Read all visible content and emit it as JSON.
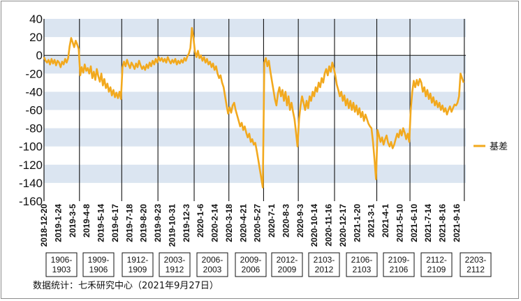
{
  "chart_data": {
    "type": "line",
    "ylim": [
      -160,
      40
    ],
    "yticks": [
      40,
      20,
      0,
      -20,
      -40,
      -60,
      -80,
      -100,
      -120,
      -140,
      -160
    ],
    "grid": "alternating horizontal bands",
    "legend_position": "right",
    "line_color": "#f2a91e",
    "band_color": "#dbe5f1",
    "series": [
      {
        "name": "基差",
        "points": [
          [
            0,
            -2
          ],
          [
            2,
            -6
          ],
          [
            4,
            -8
          ],
          [
            6,
            -5
          ],
          [
            8,
            -10
          ],
          [
            10,
            -4
          ],
          [
            12,
            -9
          ],
          [
            14,
            -5
          ],
          [
            16,
            -11
          ],
          [
            18,
            -6
          ],
          [
            20,
            -8
          ],
          [
            22,
            -13
          ],
          [
            24,
            -7
          ],
          [
            26,
            -10
          ],
          [
            28,
            -4
          ],
          [
            30,
            -8
          ],
          [
            32,
            -3
          ],
          [
            34,
            10
          ],
          [
            36,
            19
          ],
          [
            38,
            14
          ],
          [
            40,
            9
          ],
          [
            42,
            16
          ],
          [
            44,
            12
          ],
          [
            46,
            7
          ],
          [
            48,
            -22
          ],
          [
            50,
            -13
          ],
          [
            52,
            -19
          ],
          [
            54,
            -10
          ],
          [
            56,
            -17
          ],
          [
            58,
            -14
          ],
          [
            60,
            -20
          ],
          [
            62,
            -12
          ],
          [
            64,
            -25
          ],
          [
            66,
            -18
          ],
          [
            68,
            -27
          ],
          [
            70,
            -15
          ],
          [
            72,
            -23
          ],
          [
            74,
            -29
          ],
          [
            76,
            -20
          ],
          [
            78,
            -33
          ],
          [
            80,
            -26
          ],
          [
            82,
            -36
          ],
          [
            84,
            -31
          ],
          [
            86,
            -40
          ],
          [
            88,
            -35
          ],
          [
            90,
            -44
          ],
          [
            92,
            -38
          ],
          [
            94,
            -46
          ],
          [
            96,
            -41
          ],
          [
            98,
            -47
          ],
          [
            100,
            -40
          ],
          [
            102,
            -48
          ],
          [
            104,
            -13
          ],
          [
            106,
            -7
          ],
          [
            108,
            -12
          ],
          [
            110,
            -5
          ],
          [
            112,
            -10
          ],
          [
            114,
            -14
          ],
          [
            116,
            -8
          ],
          [
            118,
            -11
          ],
          [
            120,
            -15
          ],
          [
            122,
            -9
          ],
          [
            124,
            -13
          ],
          [
            126,
            -6
          ],
          [
            128,
            -11
          ],
          [
            130,
            -15
          ],
          [
            132,
            -12
          ],
          [
            134,
            -16
          ],
          [
            136,
            -10
          ],
          [
            138,
            -14
          ],
          [
            140,
            -8
          ],
          [
            142,
            -12
          ],
          [
            144,
            -6
          ],
          [
            146,
            -10
          ],
          [
            148,
            -4
          ],
          [
            150,
            -8
          ],
          [
            152,
            -2
          ],
          [
            154,
            -6
          ],
          [
            156,
            -3
          ],
          [
            158,
            -7
          ],
          [
            160,
            -4
          ],
          [
            162,
            -8
          ],
          [
            164,
            -2
          ],
          [
            166,
            -6
          ],
          [
            168,
            -9
          ],
          [
            170,
            -5
          ],
          [
            172,
            -8
          ],
          [
            174,
            -4
          ],
          [
            176,
            -10
          ],
          [
            178,
            -6
          ],
          [
            180,
            -9
          ],
          [
            182,
            -5
          ],
          [
            184,
            -8
          ],
          [
            186,
            -3
          ],
          [
            188,
            -6
          ],
          [
            190,
            -1
          ],
          [
            192,
            2
          ],
          [
            194,
            8
          ],
          [
            196,
            30
          ],
          [
            198,
            20
          ],
          [
            200,
            4
          ],
          [
            202,
            -2
          ],
          [
            204,
            5
          ],
          [
            206,
            -3
          ],
          [
            208,
            0
          ],
          [
            210,
            -6
          ],
          [
            212,
            -2
          ],
          [
            214,
            -8
          ],
          [
            216,
            -4
          ],
          [
            218,
            -10
          ],
          [
            220,
            -7
          ],
          [
            222,
            -13
          ],
          [
            224,
            -9
          ],
          [
            226,
            -16
          ],
          [
            228,
            -12
          ],
          [
            230,
            -20
          ],
          [
            232,
            -25
          ],
          [
            234,
            -22
          ],
          [
            236,
            -30
          ],
          [
            238,
            -35
          ],
          [
            240,
            -45
          ],
          [
            242,
            -55
          ],
          [
            244,
            -64
          ],
          [
            246,
            -57
          ],
          [
            248,
            -63
          ],
          [
            250,
            -55
          ],
          [
            252,
            -52
          ],
          [
            254,
            -60
          ],
          [
            256,
            -66
          ],
          [
            258,
            -72
          ],
          [
            260,
            -78
          ],
          [
            262,
            -74
          ],
          [
            264,
            -82
          ],
          [
            266,
            -78
          ],
          [
            268,
            -85
          ],
          [
            270,
            -90
          ],
          [
            272,
            -86
          ],
          [
            274,
            -95
          ],
          [
            276,
            -92
          ],
          [
            278,
            -98
          ],
          [
            280,
            -96
          ],
          [
            282,
            -105
          ],
          [
            284,
            -115
          ],
          [
            286,
            -125
          ],
          [
            288,
            -135
          ],
          [
            290,
            -145
          ],
          [
            292,
            -8
          ],
          [
            294,
            -3
          ],
          [
            296,
            -12
          ],
          [
            298,
            -6
          ],
          [
            300,
            -18
          ],
          [
            302,
            -28
          ],
          [
            304,
            -38
          ],
          [
            306,
            -48
          ],
          [
            308,
            -55
          ],
          [
            310,
            -42
          ],
          [
            312,
            -35
          ],
          [
            314,
            -45
          ],
          [
            316,
            -38
          ],
          [
            318,
            -50
          ],
          [
            320,
            -40
          ],
          [
            322,
            -55
          ],
          [
            324,
            -45
          ],
          [
            326,
            -60
          ],
          [
            328,
            -52
          ],
          [
            330,
            -62
          ],
          [
            332,
            -70
          ],
          [
            334,
            -85
          ],
          [
            336,
            -100
          ],
          [
            338,
            -70
          ],
          [
            340,
            -55
          ],
          [
            342,
            -45
          ],
          [
            344,
            -52
          ],
          [
            346,
            -60
          ],
          [
            348,
            -50
          ],
          [
            350,
            -58
          ],
          [
            352,
            -45
          ],
          [
            354,
            -50
          ],
          [
            356,
            -40
          ],
          [
            358,
            -45
          ],
          [
            360,
            -35
          ],
          [
            362,
            -40
          ],
          [
            364,
            -30
          ],
          [
            366,
            -35
          ],
          [
            368,
            -25
          ],
          [
            370,
            -30
          ],
          [
            372,
            -20
          ],
          [
            374,
            -15
          ],
          [
            376,
            -22
          ],
          [
            378,
            -12
          ],
          [
            380,
            -18
          ],
          [
            382,
            -8
          ],
          [
            384,
            -14
          ],
          [
            386,
            -22
          ],
          [
            388,
            -32
          ],
          [
            390,
            -38
          ],
          [
            392,
            -45
          ],
          [
            394,
            -40
          ],
          [
            396,
            -50
          ],
          [
            398,
            -44
          ],
          [
            400,
            -55
          ],
          [
            402,
            -48
          ],
          [
            404,
            -58
          ],
          [
            406,
            -50
          ],
          [
            408,
            -60
          ],
          [
            410,
            -52
          ],
          [
            412,
            -62
          ],
          [
            414,
            -55
          ],
          [
            416,
            -65
          ],
          [
            418,
            -58
          ],
          [
            420,
            -68
          ],
          [
            422,
            -62
          ],
          [
            424,
            -72
          ],
          [
            426,
            -65
          ],
          [
            428,
            -70
          ],
          [
            430,
            -75
          ],
          [
            432,
            -78
          ],
          [
            434,
            -80
          ],
          [
            436,
            -95
          ],
          [
            438,
            -115
          ],
          [
            440,
            -136
          ],
          [
            442,
            -82
          ],
          [
            444,
            -88
          ],
          [
            446,
            -95
          ],
          [
            448,
            -90
          ],
          [
            450,
            -98
          ],
          [
            452,
            -92
          ],
          [
            454,
            -88
          ],
          [
            456,
            -96
          ],
          [
            458,
            -100
          ],
          [
            460,
            -95
          ],
          [
            462,
            -102
          ],
          [
            464,
            -98
          ],
          [
            466,
            -92
          ],
          [
            468,
            -86
          ],
          [
            470,
            -90
          ],
          [
            472,
            -82
          ],
          [
            474,
            -88
          ],
          [
            476,
            -80
          ],
          [
            478,
            -85
          ],
          [
            480,
            -92
          ],
          [
            482,
            -86
          ],
          [
            484,
            -95
          ],
          [
            486,
            -60
          ],
          [
            488,
            -40
          ],
          [
            490,
            -28
          ],
          [
            492,
            -35
          ],
          [
            494,
            -27
          ],
          [
            496,
            -33
          ],
          [
            498,
            -26
          ],
          [
            500,
            -30
          ],
          [
            502,
            -40
          ],
          [
            504,
            -35
          ],
          [
            506,
            -45
          ],
          [
            508,
            -38
          ],
          [
            510,
            -48
          ],
          [
            512,
            -42
          ],
          [
            514,
            -52
          ],
          [
            516,
            -46
          ],
          [
            518,
            -55
          ],
          [
            520,
            -50
          ],
          [
            522,
            -57
          ],
          [
            524,
            -52
          ],
          [
            526,
            -60
          ],
          [
            528,
            -55
          ],
          [
            530,
            -62
          ],
          [
            532,
            -58
          ],
          [
            534,
            -65
          ],
          [
            536,
            -60
          ],
          [
            538,
            -56
          ],
          [
            540,
            -62
          ],
          [
            542,
            -58
          ],
          [
            544,
            -54
          ],
          [
            546,
            -55
          ],
          [
            548,
            -52
          ],
          [
            550,
            -45
          ],
          [
            552,
            -20
          ],
          [
            554,
            -25
          ],
          [
            556,
            -30
          ]
        ]
      }
    ],
    "x_tick_labels": [
      "2018-12-20",
      "2019-1-24",
      "2019-3-5",
      "2019-4-8",
      "2019-5-14",
      "2019-6-17",
      "2019-7-18",
      "2019-8-20",
      "2019-9-23",
      "2019-10-31",
      "2019-12-3",
      "2020-1-6",
      "2020-2-14",
      "2020-3-18",
      "2020-4-21",
      "2020-5-27",
      "2020-7-1",
      "2020-8-3",
      "2020-9-3",
      "2020-10-14",
      "2020-11-16",
      "2020-12-17",
      "2021-1-20",
      "2021-3-1",
      "2021-4-1",
      "2021-5-10",
      "2021-6-10",
      "2021-7-14",
      "2021-8-16",
      "2021-9-16"
    ],
    "contract_boxes": [
      [
        "1906-",
        "1903"
      ],
      [
        "1909-",
        "1906"
      ],
      [
        "1912-",
        "1909"
      ],
      [
        "2003-",
        "1912"
      ],
      [
        "2006-",
        "2003"
      ],
      [
        "2009-",
        "2006"
      ],
      [
        "2012-",
        "2009"
      ],
      [
        "2103-",
        "2012"
      ],
      [
        "2106-",
        "2103"
      ],
      [
        "2109-",
        "2106"
      ],
      [
        "2112-",
        "2109"
      ],
      [
        "2203-",
        "2112"
      ]
    ],
    "roll_points": [
      47,
      103,
      151,
      199,
      245,
      291,
      337,
      385,
      441,
      485,
      557
    ]
  },
  "legend": {
    "label": "基差"
  },
  "source_note": "数据统计：七禾研究中心（2021年9月27日）"
}
